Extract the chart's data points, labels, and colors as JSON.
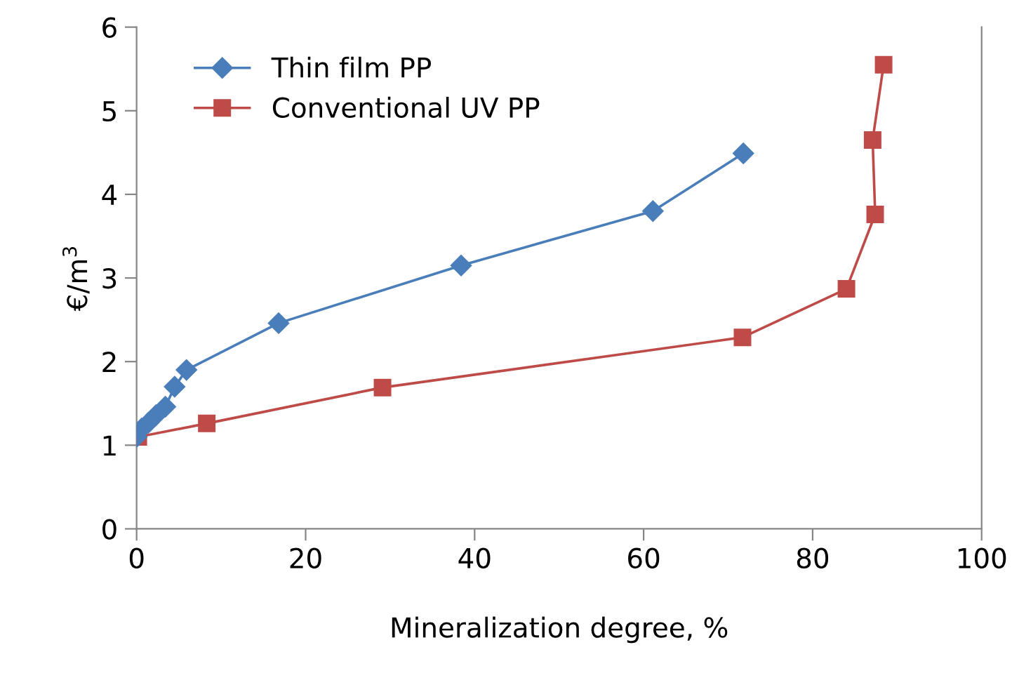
{
  "chart_data": {
    "type": "line",
    "xlabel": "Mineralization degree, %",
    "ylabel": "€/m$^{3}$",
    "xlim": [
      0,
      100
    ],
    "ylim": [
      0,
      6
    ],
    "xticks": [
      0,
      20,
      40,
      60,
      80,
      100
    ],
    "yticks": [
      0,
      1,
      2,
      3,
      4,
      5,
      6
    ],
    "grid": false,
    "legend": "top left",
    "series": [
      {
        "name": "Thin film PP",
        "color": "#4a7ebb",
        "marker": "diamond",
        "x": [
          0,
          0.6,
          1.4,
          2.3,
          3.4,
          4.5,
          5.9,
          16.8,
          38.4,
          61.1,
          71.8
        ],
        "values": [
          1.1,
          1.2,
          1.27,
          1.36,
          1.46,
          1.7,
          1.9,
          2.46,
          3.15,
          3.8,
          4.49
        ]
      },
      {
        "name": "Conventional UV PP",
        "color": "#be4b48",
        "marker": "square",
        "x": [
          0.2,
          8.3,
          29.1,
          71.7,
          84.0,
          87.4,
          87.1,
          88.4
        ],
        "values": [
          1.1,
          1.26,
          1.69,
          2.29,
          2.87,
          3.76,
          4.65,
          5.55
        ]
      }
    ]
  }
}
